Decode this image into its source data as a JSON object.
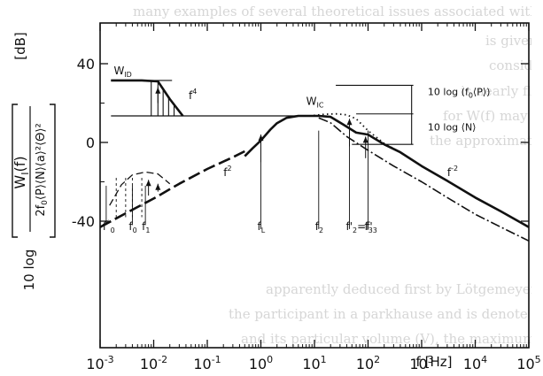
{
  "background_text": [
    "many examples of several theoretical issues associated with",
    "is given.",
    "consider the continuous part of the power spectrum W",
    "is nearly flat almost up to the frequency f and it in",
    "for W(f) may be further simplified taking n",
    "the approximation may be rearranged to the",
    "apparently deduced first by Lötgemeyer",
    "the participant in a parkhause and is denote",
    "and its particular volume (V), the maximum number"
  ],
  "chart_data": {
    "type": "line",
    "title": "",
    "xlabel": "f [Hz]",
    "ylabel_unit": "[dB]",
    "ylabel_prefix": "10 log",
    "ylabel_numerator": "W",
    "ylabel_numerator_sub": "I",
    "ylabel_numerator_arg": "(f)",
    "ylabel_denominator": "2f",
    "ylabel_denominator_sub": "0",
    "ylabel_denominator_rest": "⟨P⟩⟨N⟩⟨a⟩²⟨Θ⟩²",
    "x_scale": "log",
    "xlim": [
      0.001,
      100000
    ],
    "ylim": [
      -50,
      52
    ],
    "x_tick_labels": [
      {
        "base": "10",
        "exp": "-3"
      },
      {
        "base": "10",
        "exp": "-2"
      },
      {
        "base": "10",
        "exp": "-1"
      },
      {
        "base": "10",
        "exp": "0"
      },
      {
        "base": "10",
        "exp": "1"
      },
      {
        "base": "10",
        "exp": "2"
      },
      {
        "base": "10",
        "exp": "3"
      },
      {
        "base": "10",
        "exp": "4"
      },
      {
        "base": "10",
        "exp": "5"
      }
    ],
    "y_ticks": [
      40,
      0,
      -40
    ],
    "y_tick_labels": [
      "40",
      "0",
      "-40"
    ],
    "grid": false,
    "series": [
      {
        "style": "solid-thick",
        "x": [
          0.5,
          0.7,
          1,
          1.5,
          2,
          3,
          5,
          8,
          12,
          20,
          35,
          60,
          100,
          200,
          400,
          1000,
          3000,
          10000,
          30000,
          100000
        ],
        "y": [
          -7,
          -3,
          1,
          6.5,
          9.8,
          12.5,
          13.5,
          13.5,
          13.5,
          13,
          9,
          5,
          4,
          -1,
          -5,
          -12,
          -19.5,
          -28,
          -35,
          -43
        ]
      },
      {
        "style": "dashed-thick",
        "x": [
          0.001,
          0.003,
          0.01,
          0.03,
          0.1,
          0.3,
          0.5
        ],
        "y": [
          -43,
          -36,
          -28.5,
          -21,
          -13.5,
          -7.5,
          -4.5
        ]
      },
      {
        "style": "dotted",
        "x": [
          8,
          15,
          25,
          40,
          60,
          100,
          200,
          400,
          1000,
          3000,
          10000,
          30000,
          100000
        ],
        "y": [
          13.5,
          14.3,
          14.5,
          14,
          12,
          6,
          -0.5,
          -5,
          -12,
          -19.5,
          -28,
          -35,
          -43
        ]
      },
      {
        "style": "dash-dot",
        "x": [
          12,
          20,
          40,
          100,
          300,
          1000,
          3000,
          10000,
          30000,
          100000
        ],
        "y": [
          12.5,
          10,
          3,
          -4,
          -12,
          -20,
          -28,
          -36.5,
          -43,
          -50
        ]
      },
      {
        "style": "solid-thick",
        "x": [
          0.0016,
          0.003,
          0.006,
          0.012,
          0.02,
          0.035
        ],
        "y": [
          31.5,
          31.5,
          31.5,
          31,
          22,
          13.5
        ]
      },
      {
        "style": "solid-thin",
        "x": [
          0.0016,
          0.035,
          7
        ],
        "y": [
          13.5,
          13.5,
          13.5
        ]
      },
      {
        "style": "dashed-thin",
        "x": [
          0.0015,
          0.0025,
          0.004,
          0.007,
          0.012,
          0.02
        ],
        "y": [
          -32,
          -21.5,
          -16.5,
          -15,
          -16,
          -21
        ]
      }
    ],
    "annotations": [
      {
        "text": "W",
        "sub": "ID",
        "x": 0.0018,
        "y": 34.5
      },
      {
        "text": "f",
        "sup": "4",
        "x": 0.045,
        "y": 22
      },
      {
        "text": "W",
        "sub": "IC",
        "x": 7,
        "y": 19
      },
      {
        "text": "f",
        "sup": "2",
        "x": 0.2,
        "y": -17
      },
      {
        "text": "f",
        "sup": "-2",
        "x": 3000,
        "y": -17
      },
      {
        "text": "10 log (f",
        "sub": "0",
        "rest": "⟨P⟩)",
        "x": 1300,
        "y": 24
      },
      {
        "text": "10 log ⟨N⟩",
        "x": 1300,
        "y": 6
      }
    ],
    "frequency_labels": [
      {
        "base": "f",
        "sub": "0",
        "sup": "*",
        "x": 0.0013
      },
      {
        "base": "f",
        "sub": "0",
        "x": 0.004
      },
      {
        "base": "f",
        "sub": "1",
        "x": 0.007
      },
      {
        "base": "f",
        "sub": "L",
        "x": 1
      },
      {
        "base": "f",
        "sub": "2",
        "x": 12
      },
      {
        "base": "f'",
        "sub": "2",
        "rest": "=f'",
        "rest_sub": "3",
        "x": 45
      },
      {
        "base": "f",
        "sub": "3",
        "x": 100
      }
    ]
  }
}
